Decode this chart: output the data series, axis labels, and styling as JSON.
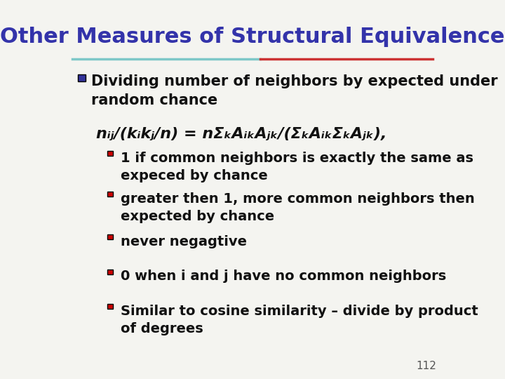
{
  "title": "Other Measures of Structural Equivalence",
  "title_color": "#3333aa",
  "title_fontsize": 22,
  "background_color": "#f4f4f0",
  "separator_color_left": "#7ec8c8",
  "separator_color_right": "#cc3333",
  "bullet_color_main": "#333399",
  "bullet_color_sub": "#cc0000",
  "slide_number": "112",
  "text_color": "#111111",
  "main_bullet": "Dividing number of neighbors by expected under\nrandom chance",
  "formula": "nᵢⱼ/(kᵢkⱼ/n) = nΣₖAᵢₖAⱼₖ/(ΣₖAᵢₖΣₖAⱼₖ),",
  "sub_bullets": [
    "1 if common neighbors is exactly the same as\nexpeced by chance",
    "greater then 1, more common neighbors then\nexpected by chance",
    "never negagtive",
    "0 when i and j have no common neighbors",
    "Similar to cosine similarity – divide by product\nof degrees"
  ],
  "font_family": "DejaVu Sans",
  "main_text_fontsize": 15,
  "sub_text_fontsize": 14,
  "formula_fontsize": 16
}
